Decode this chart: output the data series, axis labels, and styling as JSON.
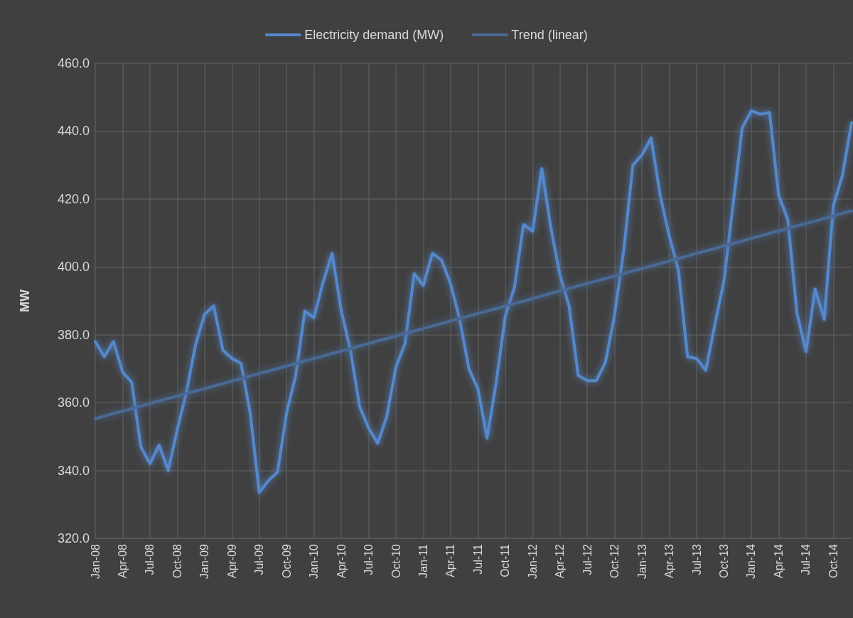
{
  "chart_data": {
    "type": "line",
    "ylabel": "MW",
    "categories": [
      "Jan-08",
      null,
      null,
      "Apr-08",
      null,
      null,
      "Jul-08",
      null,
      null,
      "Oct-08",
      null,
      null,
      "Jan-09",
      null,
      null,
      "Apr-09",
      null,
      null,
      "Jul-09",
      null,
      null,
      "Oct-09",
      null,
      null,
      "Jan-10",
      null,
      null,
      "Apr-10",
      null,
      null,
      "Jul-10",
      null,
      null,
      "Oct-10",
      null,
      null,
      "Jan-11",
      null,
      null,
      "Apr-11",
      null,
      null,
      "Jul-11",
      null,
      null,
      "Oct-11",
      null,
      null,
      "Jan-12",
      null,
      null,
      "Apr-12",
      null,
      null,
      "Jul-12",
      null,
      null,
      "Oct-12",
      null,
      null,
      "Jan-13",
      null,
      null,
      "Apr-13",
      null,
      null,
      "Jul-13",
      null,
      null,
      "Oct-13",
      null,
      null,
      "Jan-14",
      null,
      null,
      "Apr-14",
      null,
      null,
      "Jul-14",
      null,
      null,
      "Oct-14",
      null,
      null
    ],
    "series": [
      {
        "name": "Electricity demand (MW)",
        "color": "#5588cc",
        "values": [
          378,
          373.5,
          378,
          369,
          366,
          347,
          342,
          347.5,
          340,
          352,
          363,
          377,
          386,
          388.5,
          375.5,
          373,
          371.5,
          357,
          333.5,
          337,
          339.5,
          357,
          368,
          387,
          385,
          395.5,
          404,
          387,
          375.5,
          359,
          352.5,
          348,
          356,
          370.5,
          377.5,
          398,
          394.5,
          404,
          402,
          395,
          384.5,
          370,
          364,
          349.5,
          366,
          385.5,
          394,
          412.5,
          410.5,
          429,
          411.5,
          397.5,
          388.5,
          368,
          366.5,
          366.5,
          372,
          386,
          405,
          430,
          433,
          438,
          421,
          409,
          399,
          373.5,
          373,
          369.5,
          383,
          396,
          418.5,
          441,
          446,
          445,
          445.5,
          421,
          414,
          386.5,
          375,
          393.5,
          384.5,
          418,
          427,
          442.5
        ]
      },
      {
        "name": "Trend (linear)",
        "color": "#4a6a96",
        "values": [
          355.3,
          356.0,
          356.8,
          357.5,
          358.2,
          359.0,
          359.7,
          360.5,
          361.2,
          361.9,
          362.7,
          363.4,
          364.1,
          364.9,
          365.6,
          366.4,
          367.1,
          367.8,
          368.6,
          369.3,
          370.0,
          370.8,
          371.5,
          372.3,
          373.0,
          373.7,
          374.5,
          375.2,
          375.9,
          376.7,
          377.4,
          378.2,
          378.9,
          379.6,
          380.4,
          381.1,
          381.8,
          382.6,
          383.3,
          384.1,
          384.8,
          385.5,
          386.3,
          387.0,
          387.7,
          388.5,
          389.2,
          389.9,
          390.7,
          391.4,
          392.2,
          392.9,
          393.6,
          394.4,
          395.1,
          395.8,
          396.6,
          397.3,
          398.1,
          398.8,
          399.5,
          400.3,
          401.0,
          401.7,
          402.5,
          403.2,
          404.0,
          404.7,
          405.4,
          406.2,
          406.9,
          407.6,
          408.4,
          409.1,
          409.9,
          410.6,
          411.3,
          412.1,
          412.8,
          413.5,
          414.3,
          415.0,
          415.8,
          416.5
        ]
      }
    ],
    "ylim": [
      320,
      460
    ],
    "yticks": [
      {
        "value": 320,
        "label": "320.0"
      },
      {
        "value": 340,
        "label": "340.0"
      },
      {
        "value": 360,
        "label": "360.0"
      },
      {
        "value": 380,
        "label": "380.0"
      },
      {
        "value": 400,
        "label": "400.0"
      },
      {
        "value": 420,
        "label": "420.0"
      },
      {
        "value": 440,
        "label": "440.0"
      },
      {
        "value": 460,
        "label": "460.0"
      }
    ],
    "grid": true,
    "legend": "top",
    "marker": "none",
    "line_style": "solid"
  }
}
